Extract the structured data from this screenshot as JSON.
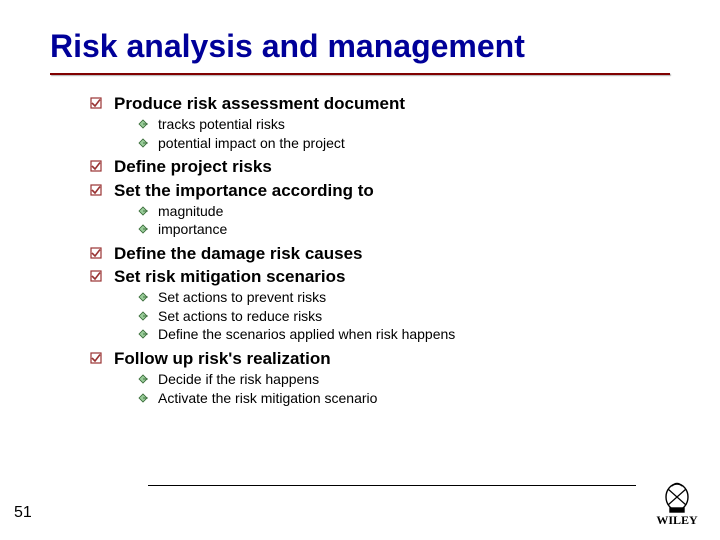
{
  "title": "Risk analysis and management",
  "title_color": "#000099",
  "title_fontsize": 32,
  "rule_color": "#800000",
  "bullet_l1_color": "#993333",
  "bullet_l2_color": "#99cc99",
  "bullet_l2_stroke": "#336633",
  "page_number": "51",
  "items": [
    {
      "text": "Produce risk assessment document",
      "children": [
        "tracks potential risks",
        "potential impact on the project"
      ]
    },
    {
      "text": "Define project risks",
      "children": []
    },
    {
      "text": "Set the importance according to",
      "children": [
        "magnitude",
        "importance"
      ]
    },
    {
      "text": "Define the damage risk causes",
      "children": []
    },
    {
      "text": "Set risk mitigation scenarios",
      "children": [
        "Set actions to prevent risks",
        "Set actions to reduce risks",
        "Define the scenarios applied when risk happens"
      ]
    },
    {
      "text": "Follow up risk's realization",
      "children": [
        "Decide if the risk happens",
        "Activate the risk mitigation scenario"
      ]
    }
  ]
}
